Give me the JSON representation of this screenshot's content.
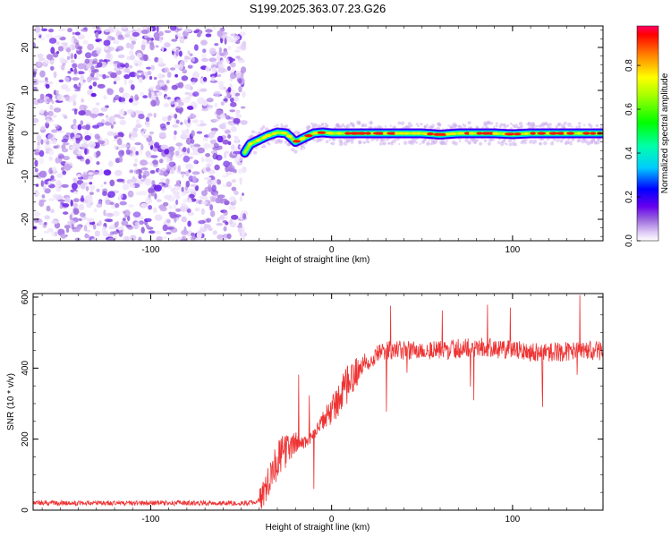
{
  "title": "S199.2025.363.07.23.G26",
  "chart_data": [
    {
      "type": "heatmap",
      "xlabel": "Height of straight line (km)",
      "ylabel": "Frequency (Hz)",
      "xlim": [
        -165,
        150
      ],
      "ylim": [
        -25,
        25
      ],
      "xticks": [
        -100,
        0,
        100
      ],
      "yticks": [
        -20,
        -10,
        0,
        10,
        20
      ],
      "noise_region_x": [
        -165,
        -48
      ],
      "signal_track": {
        "x": [
          -48,
          -45,
          -40,
          -35,
          -30,
          -25,
          -20,
          -15,
          -10,
          -5,
          0,
          10,
          20,
          30,
          40,
          50,
          60,
          70,
          80,
          90,
          100,
          110,
          120,
          130,
          140,
          150
        ],
        "freq": [
          -4.5,
          -2.5,
          -1.5,
          -0.5,
          0.2,
          0.0,
          -2.0,
          -1.0,
          0.0,
          0.2,
          0.0,
          0.0,
          0.0,
          0.0,
          0.0,
          0.0,
          -0.3,
          0.0,
          0.0,
          0.0,
          -0.2,
          0.0,
          0.0,
          0.0,
          0.0,
          0.0
        ]
      },
      "colorbar": {
        "label": "Normalized spectral amplitude",
        "range": [
          0.0,
          0.98
        ],
        "ticks": [
          0.0,
          0.2,
          0.4,
          0.6,
          0.8
        ]
      }
    },
    {
      "type": "line",
      "xlabel": "Height of straight line (km)",
      "ylabel": "SNR (10 * v/v)",
      "xlim": [
        -165,
        150
      ],
      "ylim": [
        0,
        610
      ],
      "xticks": [
        -100,
        0,
        100
      ],
      "yticks": [
        0,
        200,
        400,
        600
      ],
      "color": "#ee3333",
      "series": [
        {
          "name": "SNR",
          "x": [
            -165,
            -48,
            -42,
            -38,
            -35,
            -30,
            -25,
            -20,
            -15,
            -10,
            -5,
            0,
            5,
            10,
            15,
            20,
            25,
            30,
            40,
            60,
            80,
            100,
            120,
            150
          ],
          "y": [
            20,
            20,
            22,
            40,
            90,
            140,
            170,
            190,
            190,
            210,
            250,
            280,
            320,
            360,
            400,
            420,
            440,
            450,
            450,
            450,
            460,
            450,
            445,
            450
          ]
        }
      ]
    }
  ]
}
